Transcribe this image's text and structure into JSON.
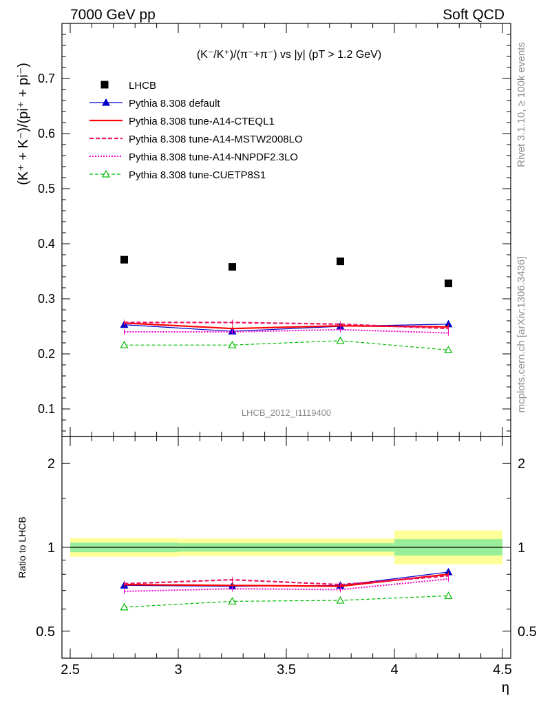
{
  "header": {
    "left": "7000 GeV pp",
    "right": "Soft QCD"
  },
  "side_labels": {
    "rivet": "Rivet 3.1.10, ≥ 100k events",
    "mcplots": "mcplots.cern.ch [arXiv:1306.3436]"
  },
  "chart_data": [
    {
      "type": "scatter",
      "title": "(K⁻/K⁺)/(π⁻+π⁻) vs |y| (pT > 1.2 GeV)",
      "ylabel": "(K⁺ + K⁻)/(pi⁺ + pi⁻)",
      "xlabel": "",
      "analysis_label": "LHCB_2012_I1119400",
      "xlim": [
        2.5,
        4.5
      ],
      "ylim": [
        0.05,
        0.8
      ],
      "yticks": [
        "0.1",
        "0.2",
        "0.3",
        "0.4",
        "0.5",
        "0.6",
        "0.7"
      ],
      "x": [
        2.75,
        3.25,
        3.75,
        4.25
      ],
      "legend_position": "top-left",
      "series": [
        {
          "name": "LHCB",
          "style": "data",
          "color": "#000000",
          "values": [
            0.371,
            0.358,
            0.368,
            0.328
          ]
        },
        {
          "name": "Pythia 8.308 default",
          "style": "mc-default",
          "color": "#0000cc",
          "values": [
            0.253,
            0.241,
            0.25,
            0.254
          ]
        },
        {
          "name": "Pythia 8.308 tune-A14-CTEQL1",
          "style": "mc-solid",
          "color": "#ff0000",
          "values": [
            0.256,
            0.246,
            0.251,
            0.249
          ]
        },
        {
          "name": "Pythia 8.308 tune-A14-MSTW2008LO",
          "style": "mc-dashed",
          "color": "#ee1166",
          "values": [
            0.257,
            0.257,
            0.254,
            0.246
          ]
        },
        {
          "name": "Pythia 8.308 tune-A14-NNPDF2.3LO",
          "style": "mc-dotted",
          "color": "#ee00cc",
          "values": [
            0.24,
            0.24,
            0.244,
            0.238
          ]
        },
        {
          "name": "Pythia 8.308 tune-CUETP8S1",
          "style": "mc-green",
          "color": "#00bb00",
          "values": [
            0.216,
            0.216,
            0.224,
            0.207
          ]
        }
      ]
    },
    {
      "type": "line",
      "ylabel": "Ratio to LHCB",
      "xlabel": "η",
      "xlim": [
        2.5,
        4.5
      ],
      "ylim": [
        0.4,
        2.5
      ],
      "log_y": true,
      "xticks": [
        "2.5",
        "3",
        "3.5",
        "4",
        "4.5"
      ],
      "yticks": [
        "0.5",
        "1",
        "2"
      ],
      "bins": [
        [
          2.5,
          3.0
        ],
        [
          3.0,
          3.5
        ],
        [
          3.5,
          4.0
        ],
        [
          4.0,
          4.5
        ]
      ],
      "band_inner": [
        [
          0.96,
          1.04
        ],
        [
          0.965,
          1.035
        ],
        [
          0.965,
          1.035
        ],
        [
          0.935,
          1.07
        ]
      ],
      "band_outer": [
        [
          0.925,
          1.08
        ],
        [
          0.93,
          1.075
        ],
        [
          0.93,
          1.075
        ],
        [
          0.87,
          1.15
        ]
      ],
      "x": [
        2.75,
        3.25,
        3.75,
        4.25
      ],
      "series": [
        {
          "name": "Pythia 8.308 default",
          "style": "mc-default",
          "color": "#0000cc",
          "values": [
            0.73,
            0.725,
            0.73,
            0.815
          ]
        },
        {
          "name": "Pythia 8.308 tune-A14-CTEQL1",
          "style": "mc-solid",
          "color": "#ff0000",
          "values": [
            0.735,
            0.73,
            0.725,
            0.8
          ]
        },
        {
          "name": "Pythia 8.308 tune-A14-MSTW2008LO",
          "style": "mc-dashed",
          "color": "#ee1166",
          "values": [
            0.74,
            0.765,
            0.735,
            0.79
          ]
        },
        {
          "name": "Pythia 8.308 tune-A14-NNPDF2.3LO",
          "style": "mc-dotted",
          "color": "#ee00cc",
          "values": [
            0.695,
            0.71,
            0.705,
            0.77
          ]
        },
        {
          "name": "Pythia 8.308 tune-CUETP8S1",
          "style": "mc-green",
          "color": "#00bb00",
          "values": [
            0.61,
            0.64,
            0.645,
            0.67
          ]
        }
      ]
    }
  ]
}
